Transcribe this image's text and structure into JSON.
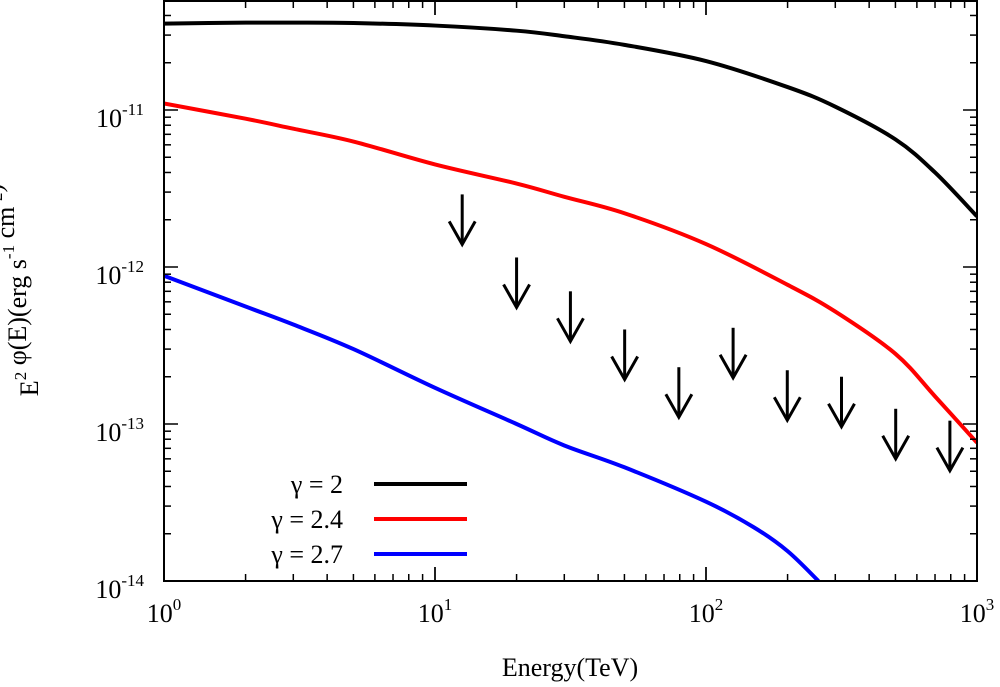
{
  "chart_data": {
    "type": "line",
    "title": "",
    "xlabel": "Energy(TeV)",
    "ylabel": {
      "parts": [
        {
          "text": "E",
          "sup": "2"
        },
        {
          "text": " φ(E)(erg s",
          "sup": "-1"
        },
        {
          "text": " cm",
          "sup": "-2"
        },
        {
          "text": ")",
          "sup": ""
        }
      ]
    },
    "xscale": "log",
    "yscale": "log",
    "xlim": [
      1,
      1000
    ],
    "ylim": [
      1e-14,
      5e-11
    ],
    "grid": false,
    "legend_position": "bottom-left",
    "x_ticks": [
      {
        "value": 1,
        "base": "10",
        "exp": "0"
      },
      {
        "value": 10,
        "base": "10",
        "exp": "1"
      },
      {
        "value": 100,
        "base": "10",
        "exp": "2"
      },
      {
        "value": 1000,
        "base": "10",
        "exp": "3"
      }
    ],
    "y_ticks": [
      {
        "value": 1e-11,
        "base": "10",
        "exp": "-11"
      },
      {
        "value": 1e-12,
        "base": "10",
        "exp": "-12"
      },
      {
        "value": 1e-13,
        "base": "10",
        "exp": "-13"
      },
      {
        "value": 1e-14,
        "base": "10",
        "exp": "-14"
      }
    ],
    "series": [
      {
        "name": "γ = 2",
        "color": "#000000",
        "x": [
          1,
          2,
          3,
          5,
          10,
          20,
          30,
          50,
          100,
          200,
          300,
          500,
          700,
          1000
        ],
        "y": [
          3.55e-11,
          3.6e-11,
          3.6e-11,
          3.58e-11,
          3.45e-11,
          3.2e-11,
          2.95e-11,
          2.6e-11,
          2.05e-11,
          1.4e-11,
          1.05e-11,
          6.5e-12,
          4e-12,
          2.1e-12
        ]
      },
      {
        "name": "γ = 2.4",
        "color": "#ff0000",
        "x": [
          1,
          2,
          3,
          5,
          10,
          20,
          30,
          50,
          100,
          200,
          300,
          500,
          700,
          1000
        ],
        "y": [
          1.1e-11,
          8.8e-12,
          7.6e-12,
          6.3e-12,
          4.5e-12,
          3.4e-12,
          2.8e-12,
          2.2e-12,
          1.4e-12,
          7.7e-13,
          5.2e-13,
          2.8e-13,
          1.5e-13,
          7.6e-14
        ]
      },
      {
        "name": "γ = 2.7",
        "color": "#0000ff",
        "x": [
          1,
          2,
          3,
          5,
          10,
          20,
          30,
          50,
          100,
          150,
          200,
          260
        ],
        "y": [
          8.8e-13,
          5.6e-13,
          4.3e-13,
          3e-13,
          1.7e-13,
          1e-13,
          7.3e-14,
          5.3e-14,
          3.2e-14,
          2.2e-14,
          1.55e-14,
          1e-14
        ]
      }
    ],
    "upper_limits": {
      "name": "upper limits",
      "color": "#000000",
      "x": [
        12.6,
        20.0,
        31.6,
        50.1,
        79.4,
        125.9,
        199.5,
        316.2,
        501.2,
        794.3
      ],
      "y": [
        2.9e-12,
        1.15e-12,
        7e-13,
        4e-13,
        2.3e-13,
        4.1e-13,
        2.2e-13,
        2e-13,
        1.25e-13,
        1.05e-13
      ]
    }
  }
}
